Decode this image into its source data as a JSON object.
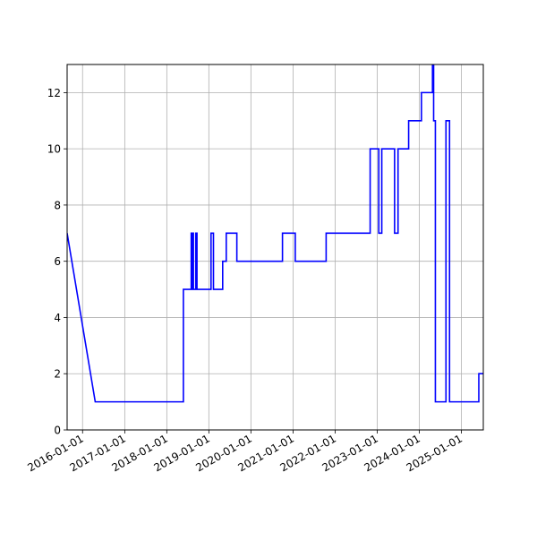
{
  "chart_data": {
    "type": "line",
    "title": "",
    "xlabel": "",
    "ylabel": "",
    "x_tick_labels": [
      "2016-01-01",
      "2017-01-01",
      "2018-01-01",
      "2019-01-01",
      "2020-01-01",
      "2021-01-01",
      "2022-01-01",
      "2023-01-01",
      "2024-01-01",
      "2025-01-01"
    ],
    "y_tick_labels": [
      "0",
      "2",
      "4",
      "6",
      "8",
      "10",
      "12"
    ],
    "xlim": [
      "2015-08-20",
      "2025-07-10"
    ],
    "ylim": [
      0,
      13
    ],
    "grid": true,
    "line_color": "#0000ff",
    "series": [
      {
        "x": [
          "2015-08-20",
          "2016-04-20",
          "2018-05-25",
          "2018-05-25",
          "2018-07-10",
          "2018-08-01",
          "2018-08-01",
          "2018-08-03",
          "2018-08-03",
          "2018-08-15",
          "2018-08-15",
          "2018-08-20",
          "2018-08-20",
          "2018-09-10",
          "2018-09-10",
          "2018-09-20",
          "2018-09-20",
          "2019-01-20",
          "2019-01-20",
          "2019-02-10",
          "2019-02-10",
          "2019-05-01",
          "2019-05-01",
          "2019-06-01",
          "2019-06-01",
          "2019-09-01",
          "2019-09-01",
          "2019-10-01",
          "2020-10-01",
          "2020-10-01",
          "2021-01-20",
          "2021-01-20",
          "2021-10-15",
          "2021-10-15",
          "2022-11-01",
          "2022-11-01",
          "2023-01-15",
          "2023-01-15",
          "2023-02-10",
          "2023-02-10",
          "2023-06-01",
          "2023-06-01",
          "2023-07-01",
          "2023-07-01",
          "2023-10-01",
          "2023-10-01",
          "2024-01-20",
          "2024-01-20",
          "2024-04-25",
          "2024-04-25",
          "2024-05-05",
          "2024-05-05",
          "2024-05-20",
          "2024-05-20",
          "2024-08-20",
          "2024-08-20",
          "2024-09-20",
          "2024-09-20",
          "2025-06-01",
          "2025-06-01",
          "2025-07-10"
        ],
        "y": [
          7,
          1,
          1,
          5,
          5,
          5,
          7,
          7,
          5,
          5,
          7,
          7,
          5,
          5,
          7,
          7,
          5,
          5,
          7,
          7,
          5,
          5,
          6,
          6,
          7,
          7,
          6,
          6,
          6,
          7,
          7,
          6,
          6,
          7,
          7,
          10,
          10,
          7,
          7,
          10,
          10,
          7,
          7,
          10,
          10,
          11,
          11,
          12,
          12,
          13,
          13,
          11,
          11,
          1,
          1,
          11,
          11,
          1,
          1,
          2,
          2
        ]
      }
    ]
  }
}
